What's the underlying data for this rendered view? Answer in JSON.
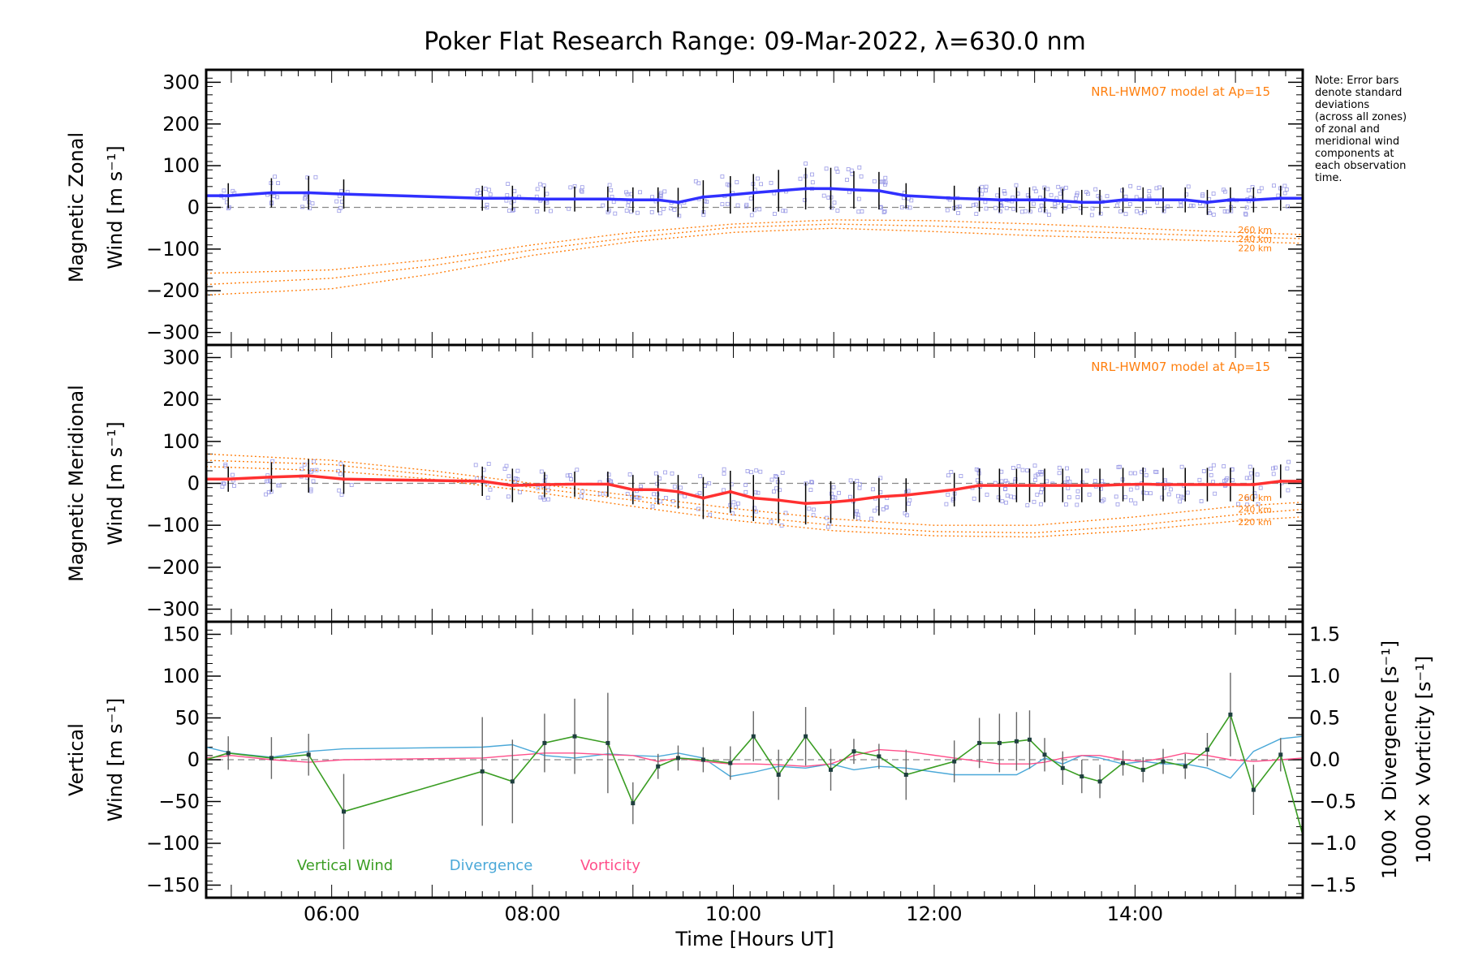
{
  "chart_data": {
    "title": "Poker Flat Research Range: 09-Mar-2022, λ=630.0 nm",
    "note": [
      "Note: Error bars",
      "denote standard",
      "deviations",
      "(across all zones)",
      "of zonal and",
      "meridional wind",
      "components at",
      "each observation",
      "time."
    ],
    "x_axis": {
      "label": "Time [Hours UT]",
      "range": [
        4.75,
        15.67
      ],
      "tick_values": [
        6,
        8,
        10,
        12,
        14
      ],
      "tick_labels": [
        "06:00",
        "08:00",
        "10:00",
        "12:00",
        "14:00"
      ]
    },
    "colors": {
      "zonal": "#3030ff",
      "meridional": "#ff3030",
      "vertical": "#3a9d23",
      "divergence": "#4aa8d8",
      "vorticity": "#ff4f8a",
      "model": "#ff7f0e",
      "scatter": "#9a9ae6",
      "error": "#000000",
      "zero_line": "#888888"
    },
    "times": [
      4.97,
      5.4,
      5.77,
      6.12,
      7.5,
      7.8,
      8.12,
      8.42,
      8.75,
      9.0,
      9.25,
      9.45,
      9.7,
      9.97,
      10.2,
      10.45,
      10.72,
      10.97,
      11.2,
      11.45,
      11.72,
      12.2,
      12.45,
      12.65,
      12.82,
      12.95,
      13.1,
      13.28,
      13.47,
      13.65,
      13.88,
      14.08,
      14.28,
      14.5,
      14.72,
      14.95,
      15.18,
      15.45
    ],
    "panels": [
      {
        "type": "line",
        "name": "zonal",
        "ylabel": [
          "Magnetic Zonal",
          "Wind [m s⁻¹]"
        ],
        "ylim": [
          -330,
          330
        ],
        "yticks": [
          -300,
          -200,
          -100,
          0,
          100,
          200,
          300
        ],
        "ytick_labels": [
          "−300",
          "−200",
          "−100",
          "0",
          "100",
          "200",
          "300"
        ],
        "model_label": "NRL-HWM07 model at Ap=15",
        "model_level_labels": [
          "260 km",
          "240 km",
          "220 km"
        ],
        "series_name": "Magnetic Zonal Wind",
        "values": [
          28,
          35,
          35,
          32,
          22,
          22,
          20,
          20,
          20,
          18,
          18,
          12,
          25,
          30,
          35,
          40,
          45,
          45,
          42,
          40,
          28,
          22,
          20,
          18,
          18,
          18,
          18,
          15,
          12,
          12,
          18,
          18,
          18,
          18,
          12,
          18,
          18,
          22
        ],
        "errors": [
          30,
          35,
          40,
          35,
          30,
          30,
          30,
          30,
          30,
          30,
          30,
          35,
          40,
          45,
          45,
          50,
          50,
          50,
          45,
          45,
          30,
          30,
          30,
          30,
          30,
          30,
          30,
          30,
          30,
          30,
          30,
          30,
          30,
          30,
          30,
          30,
          30,
          30
        ],
        "model_curves": [
          {
            "label": "260 km",
            "x": [
              4.75,
              6,
              7,
              8,
              9,
              10,
              11,
              12,
              13,
              14,
              15,
              15.67
            ],
            "y": [
              -158,
              -150,
              -125,
              -90,
              -60,
              -40,
              -30,
              -32,
              -40,
              -50,
              -60,
              -65
            ]
          },
          {
            "label": "240 km",
            "x": [
              4.75,
              6,
              7,
              8,
              9,
              10,
              11,
              12,
              13,
              14,
              15,
              15.67
            ],
            "y": [
              -185,
              -170,
              -140,
              -102,
              -72,
              -48,
              -40,
              -45,
              -55,
              -62,
              -70,
              -75
            ]
          },
          {
            "label": "220 km",
            "x": [
              4.75,
              6,
              7,
              8,
              9,
              10,
              11,
              12,
              13,
              14,
              15,
              15.67
            ],
            "y": [
              -210,
              -195,
              -160,
              -115,
              -82,
              -60,
              -50,
              -58,
              -68,
              -75,
              -82,
              -86
            ]
          }
        ]
      },
      {
        "type": "line",
        "name": "meridional",
        "ylabel": [
          "Magnetic Meridional",
          "Wind [m s⁻¹]"
        ],
        "ylim": [
          -330,
          330
        ],
        "yticks": [
          -300,
          -200,
          -100,
          0,
          100,
          200,
          300
        ],
        "ytick_labels": [
          "−300",
          "−200",
          "−100",
          "0",
          "100",
          "200",
          "300"
        ],
        "model_label": "NRL-HWM07 model at Ap=15",
        "model_level_labels": [
          "260 km",
          "240 km",
          "220 km"
        ],
        "series_name": "Magnetic Meridional Wind",
        "values": [
          10,
          15,
          18,
          10,
          5,
          -5,
          -3,
          -2,
          -2,
          -15,
          -15,
          -20,
          -35,
          -20,
          -35,
          -40,
          -48,
          -45,
          -40,
          -32,
          -28,
          -15,
          -5,
          -5,
          -5,
          -5,
          -5,
          -5,
          -5,
          -5,
          -3,
          -2,
          -3,
          -3,
          -3,
          -3,
          -3,
          5
        ],
        "errors": [
          30,
          35,
          40,
          35,
          35,
          40,
          30,
          30,
          30,
          35,
          35,
          40,
          50,
          50,
          55,
          55,
          50,
          50,
          45,
          45,
          40,
          40,
          40,
          40,
          40,
          40,
          40,
          40,
          40,
          40,
          40,
          40,
          40,
          40,
          40,
          40,
          40,
          40
        ],
        "model_curves": [
          {
            "label": "260 km",
            "x": [
              4.75,
              6,
              7,
              8,
              9,
              10,
              11,
              12,
              13,
              14,
              15,
              15.67
            ],
            "y": [
              70,
              55,
              30,
              0,
              -30,
              -60,
              -85,
              -100,
              -100,
              -80,
              -55,
              -45
            ]
          },
          {
            "label": "240 km",
            "x": [
              4.75,
              6,
              7,
              8,
              9,
              10,
              11,
              12,
              13,
              14,
              15,
              15.67
            ],
            "y": [
              55,
              45,
              20,
              -10,
              -40,
              -75,
              -100,
              -115,
              -118,
              -100,
              -75,
              -62
            ]
          },
          {
            "label": "220 km",
            "x": [
              4.75,
              6,
              7,
              8,
              9,
              10,
              11,
              12,
              13,
              14,
              15,
              15.67
            ],
            "y": [
              40,
              30,
              10,
              -20,
              -55,
              -88,
              -113,
              -125,
              -128,
              -112,
              -90,
              -80
            ]
          }
        ]
      },
      {
        "type": "line",
        "name": "vertical",
        "ylabel": [
          "Vertical",
          "Wind [m s⁻¹]"
        ],
        "ylim": [
          -165,
          165
        ],
        "yticks": [
          -150,
          -100,
          -50,
          0,
          50,
          100,
          150
        ],
        "ytick_labels": [
          "−150",
          "−100",
          "−50",
          "0",
          "50",
          "100",
          "150"
        ],
        "right_ylim": [
          -1.65,
          1.65
        ],
        "right_yticks": [
          -1.5,
          -1.0,
          -0.5,
          0.0,
          0.5,
          1.0,
          1.5
        ],
        "right_ytick_labels": [
          "−1.5",
          "−1.0",
          "−0.5",
          "0.0",
          "0.5",
          "1.0",
          "1.5"
        ],
        "right_labels": [
          "1000 × Divergence [s⁻¹]",
          "1000 × Vorticity [s⁻¹]"
        ],
        "legend": [
          "Vertical Wind",
          "Divergence",
          "Vorticity"
        ],
        "vertical_values": [
          8,
          2,
          6,
          -62,
          -14,
          -26,
          20,
          28,
          20,
          -52,
          -8,
          2,
          0,
          -4,
          28,
          -18,
          28,
          -12,
          10,
          4,
          -18,
          -2,
          20,
          20,
          22,
          24,
          6,
          -10,
          -20,
          -26,
          -4,
          -12,
          -2,
          -8,
          12,
          54,
          -36,
          6
        ],
        "vertical_errors": [
          20,
          25,
          25,
          45,
          65,
          50,
          35,
          45,
          60,
          25,
          15,
          15,
          15,
          20,
          30,
          30,
          35,
          25,
          15,
          15,
          30,
          25,
          30,
          35,
          35,
          35,
          20,
          20,
          20,
          20,
          15,
          15,
          15,
          15,
          20,
          50,
          30,
          20
        ],
        "divergence_x": [
          4.75,
          5.0,
          5.4,
          5.77,
          6.12,
          7.5,
          7.8,
          8.12,
          8.42,
          8.75,
          9.0,
          9.25,
          9.45,
          9.7,
          9.97,
          10.2,
          10.45,
          10.72,
          10.97,
          11.2,
          11.45,
          11.72,
          12.2,
          12.45,
          12.65,
          12.82,
          12.95,
          13.1,
          13.28,
          13.47,
          13.65,
          13.88,
          14.08,
          14.28,
          14.5,
          14.72,
          14.95,
          15.18,
          15.45,
          15.67
        ],
        "divergence_values": [
          0.15,
          0.08,
          0.03,
          0.1,
          0.13,
          0.15,
          0.18,
          0.05,
          0.02,
          0.07,
          0.05,
          0.04,
          0.08,
          0.02,
          -0.2,
          -0.15,
          -0.08,
          -0.1,
          -0.05,
          -0.12,
          -0.08,
          -0.1,
          -0.18,
          -0.18,
          -0.18,
          -0.18,
          -0.1,
          0.02,
          -0.05,
          0.05,
          0.02,
          -0.05,
          -0.02,
          -0.05,
          -0.05,
          -0.1,
          -0.22,
          0.1,
          0.25,
          0.28
        ],
        "vorticity_values": [
          0.02,
          0.05,
          0.0,
          -0.03,
          0.0,
          0.02,
          0.05,
          0.08,
          0.08,
          0.06,
          0.05,
          -0.02,
          0.02,
          -0.02,
          -0.05,
          -0.05,
          -0.06,
          -0.08,
          -0.05,
          0.05,
          0.12,
          0.1,
          0.02,
          -0.02,
          -0.05,
          -0.05,
          -0.05,
          -0.03,
          0.02,
          0.05,
          0.05,
          0.0,
          -0.02,
          0.02,
          0.08,
          0.05,
          0.0,
          -0.02,
          0.0,
          0.02
        ]
      }
    ]
  }
}
